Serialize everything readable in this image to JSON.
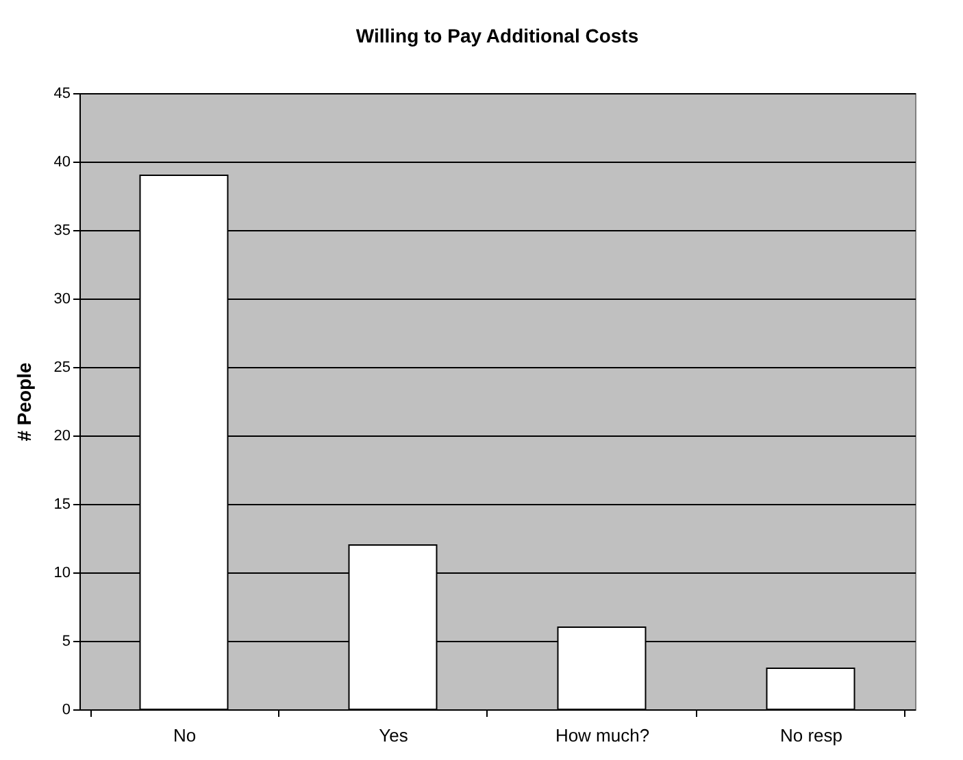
{
  "chart_data": {
    "type": "bar",
    "title": "Willing to Pay Additional Costs",
    "ylabel": "# People",
    "categories": [
      "No",
      "Yes",
      "How much?",
      "No resp"
    ],
    "values": [
      39,
      12,
      6,
      3
    ],
    "color": "#ffffff",
    "ylim": [
      0,
      45
    ],
    "yticks": [
      0,
      5,
      10,
      15,
      20,
      25,
      30,
      35,
      40,
      45
    ],
    "grid": "y"
  }
}
